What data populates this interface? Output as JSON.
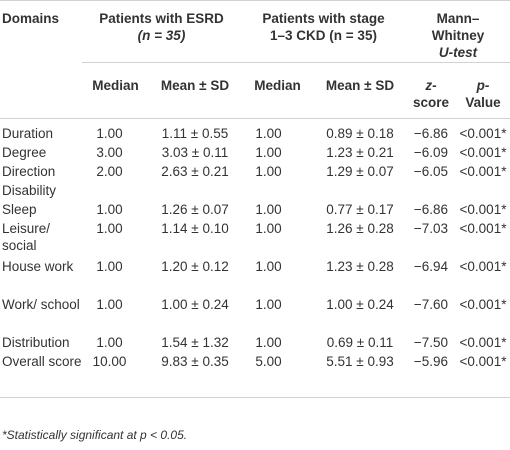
{
  "header": {
    "domains": "Domains",
    "group_esrd_line1": "Patients with ESRD",
    "group_esrd_line2": "(n = 35)",
    "group_ckd_line1": "Patients with stage",
    "group_ckd_line2": "1–3 CKD (n = 35)",
    "group_mw_line1": "Mann–",
    "group_mw_line2": "Whitney",
    "group_mw_line3": "U-test",
    "median": "Median",
    "mean_sd": "Mean ± SD",
    "z_line1": "z-",
    "z_line2": "score",
    "p_line1": "p-",
    "p_line2": "Value"
  },
  "rows": [
    {
      "domain": "Duration",
      "esrd_median": "1.00",
      "esrd_mean": "1.11 ± 0.55",
      "ckd_median": "1.00",
      "ckd_mean": "0.89 ± 0.18",
      "z": "−6.86",
      "p": "<0.001*"
    },
    {
      "domain": "Degree",
      "esrd_median": "3.00",
      "esrd_mean": "3.03 ± 0.11",
      "ckd_median": "1.00",
      "ckd_mean": "1.23 ± 0.21",
      "z": "−6.09",
      "p": "<0.001*"
    },
    {
      "domain": "Direction",
      "esrd_median": "2.00",
      "esrd_mean": "2.63 ± 0.21",
      "ckd_median": "1.00",
      "ckd_mean": "1.29 ± 0.07",
      "z": "−6.05",
      "p": "<0.001*"
    },
    {
      "domain": "Disability",
      "esrd_median": "",
      "esrd_mean": "",
      "ckd_median": "",
      "ckd_mean": "",
      "z": "",
      "p": ""
    },
    {
      "domain": "Sleep",
      "esrd_median": "1.00",
      "esrd_mean": "1.26 ± 0.07",
      "ckd_median": "1.00",
      "ckd_mean": "0.77 ± 0.17",
      "z": "−6.86",
      "p": "<0.001*"
    },
    {
      "domain": "Leisure/ social",
      "esrd_median": "1.00",
      "esrd_mean": "1.14 ± 0.10",
      "ckd_median": "1.00",
      "ckd_mean": "1.26 ± 0.28",
      "z": "−7.03",
      "p": "<0.001*"
    },
    {
      "domain": "House work",
      "esrd_median": "1.00",
      "esrd_mean": "1.20 ± 0.12",
      "ckd_median": "1.00",
      "ckd_mean": "1.23 ± 0.28",
      "z": "−6.94",
      "p": "<0.001*"
    },
    {
      "domain": "Work/ school",
      "esrd_median": "1.00",
      "esrd_mean": "1.00 ± 0.24",
      "ckd_median": "1.00",
      "ckd_mean": "1.00 ± 0.24",
      "z": "−7.60",
      "p": "<0.001*"
    },
    {
      "domain": "Distribution",
      "esrd_median": "1.00",
      "esrd_mean": "1.54 ± 1.32",
      "ckd_median": "1.00",
      "ckd_mean": "0.69 ± 0.11",
      "z": "−7.50",
      "p": "<0.001*"
    },
    {
      "domain": "Overall score",
      "esrd_median": "10.00",
      "esrd_mean": "9.83 ± 0.35",
      "ckd_median": "5.00",
      "ckd_mean": "5.51 ± 0.93",
      "z": "−5.96",
      "p": "<0.001*"
    }
  ],
  "footnote": "*Statistically significant at p < 0.05."
}
